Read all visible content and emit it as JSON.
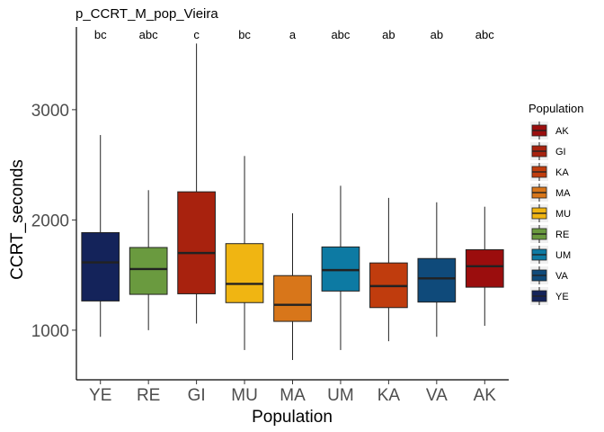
{
  "chart_data": {
    "type": "boxplot",
    "title": "p_CCRT_M_pop_Vieira",
    "xlabel": "Population",
    "ylabel": "CCRT_seconds",
    "ylim": [
      550,
      3750
    ],
    "yticks": [
      1000,
      2000,
      3000
    ],
    "grid": false,
    "legend_title": "Population",
    "legend_position": "right",
    "categories": [
      "YE",
      "RE",
      "GI",
      "MU",
      "MA",
      "UM",
      "KA",
      "VA",
      "AK"
    ],
    "boxes": [
      {
        "name": "YE",
        "min": 940,
        "q1": 1265,
        "median": 1615,
        "q3": 1885,
        "max": 2770,
        "letters": "bc",
        "color": "#14235a"
      },
      {
        "name": "RE",
        "min": 1000,
        "q1": 1325,
        "median": 1555,
        "q3": 1750,
        "max": 2270,
        "letters": "abc",
        "color": "#6a9a3f"
      },
      {
        "name": "GI",
        "min": 1060,
        "q1": 1330,
        "median": 1700,
        "q3": 2255,
        "max": 3600,
        "letters": "c",
        "color": "#a8220e"
      },
      {
        "name": "MU",
        "min": 820,
        "q1": 1250,
        "median": 1420,
        "q3": 1785,
        "max": 2580,
        "letters": "bc",
        "color": "#f0b512"
      },
      {
        "name": "MA",
        "min": 730,
        "q1": 1080,
        "median": 1230,
        "q3": 1495,
        "max": 2060,
        "letters": "a",
        "color": "#d8761a"
      },
      {
        "name": "UM",
        "min": 820,
        "q1": 1355,
        "median": 1545,
        "q3": 1755,
        "max": 2310,
        "letters": "abc",
        "color": "#0d7aa3"
      },
      {
        "name": "KA",
        "min": 900,
        "q1": 1205,
        "median": 1400,
        "q3": 1610,
        "max": 2200,
        "letters": "ab",
        "color": "#c03c0d"
      },
      {
        "name": "VA",
        "min": 940,
        "q1": 1255,
        "median": 1470,
        "q3": 1650,
        "max": 2160,
        "letters": "ab",
        "color": "#0f4a7a"
      },
      {
        "name": "AK",
        "min": 1040,
        "q1": 1390,
        "median": 1580,
        "q3": 1730,
        "max": 2120,
        "letters": "abc",
        "color": "#9b0d0d"
      }
    ],
    "legend": [
      {
        "label": "AK",
        "color": "#9b0d0d"
      },
      {
        "label": "GI",
        "color": "#a8220e"
      },
      {
        "label": "KA",
        "color": "#c03c0d"
      },
      {
        "label": "MA",
        "color": "#d8761a"
      },
      {
        "label": "MU",
        "color": "#f0b512"
      },
      {
        "label": "RE",
        "color": "#6a9a3f"
      },
      {
        "label": "UM",
        "color": "#0d7aa3"
      },
      {
        "label": "VA",
        "color": "#0f4a7a"
      },
      {
        "label": "YE",
        "color": "#14235a"
      }
    ]
  }
}
